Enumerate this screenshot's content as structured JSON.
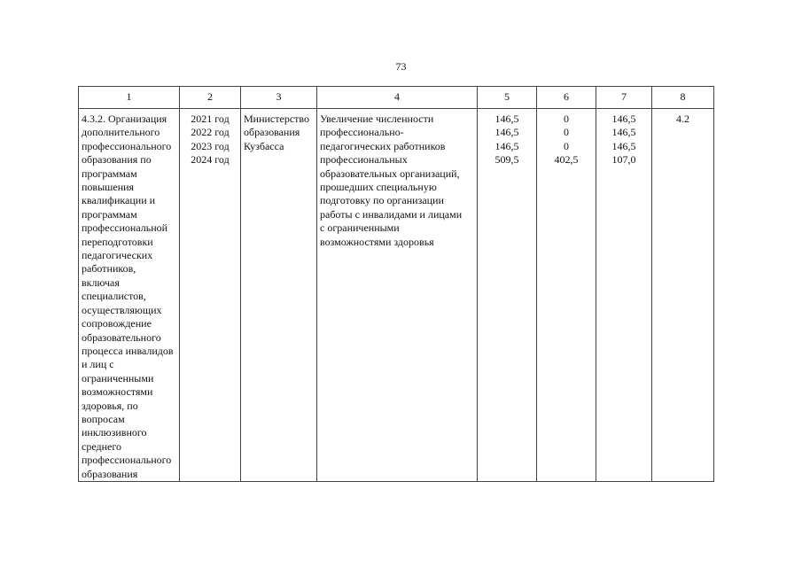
{
  "page_number": "73",
  "headers": [
    "1",
    "2",
    "3",
    "4",
    "5",
    "6",
    "7",
    "8"
  ],
  "row": {
    "activity": "4.3.2. Организация\nдополнительного\nпрофессионального\nобразования по\nпрограммам\nповышения\nквалификации и\nпрограммам\nпрофессиональной\nпереподготовки\nпедагогических\nработников,\nвключая\nспециалистов,\nосуществляющих\nсопровождение\nобразовательного\nпроцесса инвалидов\nи лиц с\nограниченными\nвозможностями\nздоровья, по\nвопросам\nинклюзивного\nсреднего\nпрофессионального\nобразования",
    "years": "2021 год\n2022 год\n2023 год\n2024 год",
    "executor": "Министерство\nобразования\nКузбасса",
    "result": "Увеличение численности\nпрофессионально-\nпедагогических работников\nпрофессиональных\nобразовательных организаций,\nпрошедших специальную\nподготовку по организации\nработы с инвалидами и лицами\nс ограниченными\nвозможностями здоровья",
    "col5": "146,5\n146,5\n146,5\n509,5",
    "col6": "0\n0\n0\n402,5",
    "col7": "146,5\n146,5\n146,5\n107,0",
    "col8": "4.2"
  }
}
